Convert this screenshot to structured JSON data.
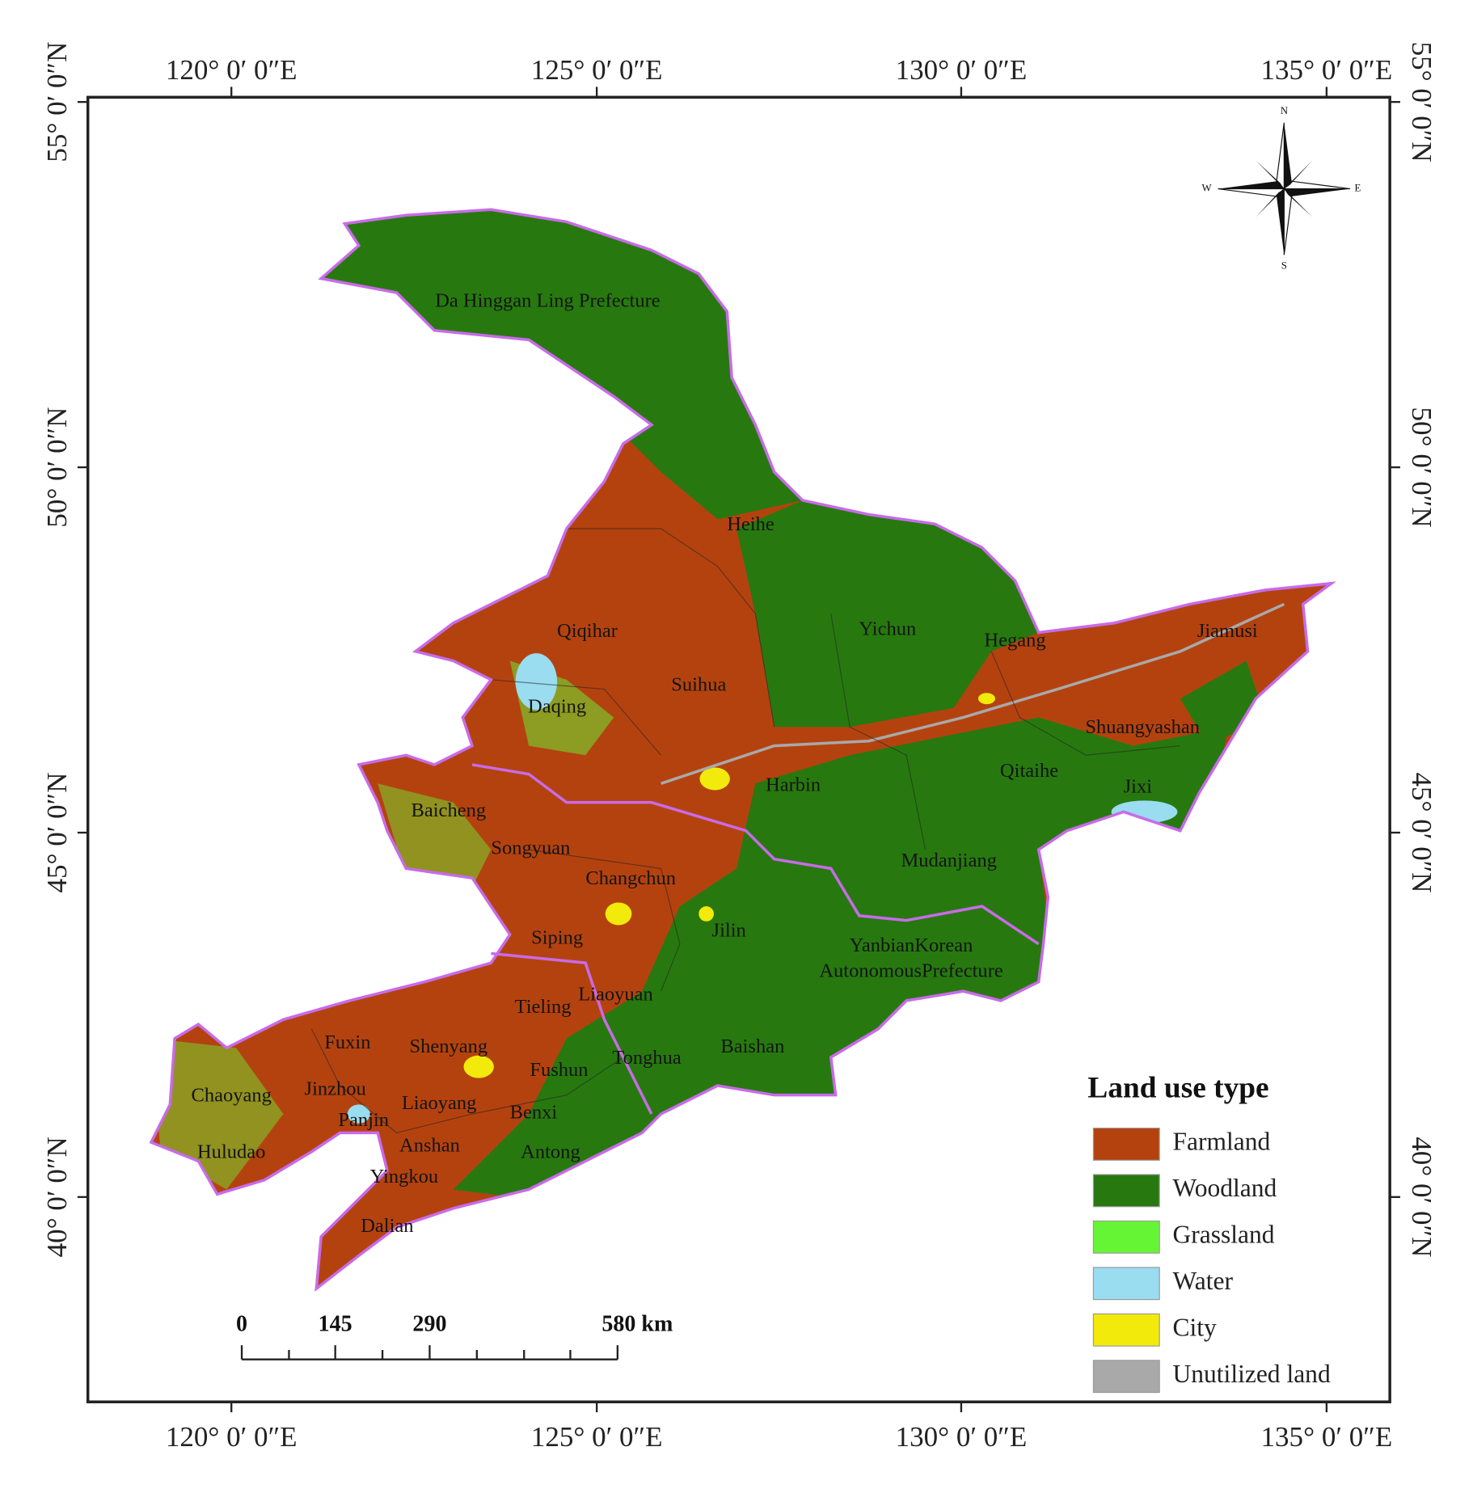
{
  "map": {
    "longitude_labels": [
      "120° 0′ 0″E",
      "125° 0′ 0″E",
      "130° 0′ 0″E",
      "135° 0′ 0″E"
    ],
    "latitude_labels": [
      "55° 0′ 0″N",
      "50° 0′ 0″N",
      "45° 0′ 0″N",
      "40° 0′ 0″N"
    ],
    "compass": {
      "north": "N",
      "south": "S",
      "east": "E",
      "west": "W"
    },
    "place_labels": [
      "Da Hinggan Ling Prefecture",
      "Heihe",
      "Qiqihar",
      "Yichun",
      "Hegang",
      "Jiamusi",
      "Suihua",
      "Daqing",
      "Shuangyashan",
      "Qitaihe",
      "Jixi",
      "Harbin",
      "Baicheng",
      "Songyuan",
      "Changchun",
      "Mudanjiang",
      "Jilin",
      "YanbianKorean",
      "AutonomousPrefecture",
      "Siping",
      "Tieling",
      "Liaoyuan",
      "Fuxin",
      "Shenyang",
      "Fushun",
      "Tonghua",
      "Baishan",
      "Chaoyang",
      "Jinzhou",
      "Liaoyang",
      "Benxi",
      "Panjin",
      "Anshan",
      "Antong",
      "Huludao",
      "Yingkou",
      "Dalian"
    ],
    "legend": {
      "title": "Land use type",
      "items": [
        {
          "label": "Farmland",
          "color": "#b4420f"
        },
        {
          "label": "Woodland",
          "color": "#27790f"
        },
        {
          "label": "Grassland",
          "color": "#66f535"
        },
        {
          "label": "Water",
          "color": "#9adcf0"
        },
        {
          "label": "City",
          "color": "#f2ea0a"
        },
        {
          "label": "Unutilized land",
          "color": "#a9a9a9"
        }
      ]
    },
    "scale_bar": {
      "labels": [
        "0",
        "145",
        "290",
        "580 km"
      ]
    }
  }
}
